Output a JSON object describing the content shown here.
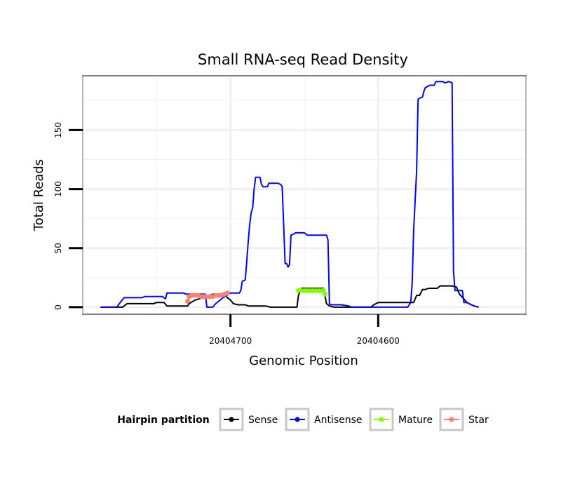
{
  "chart_data": {
    "type": "line",
    "title": "Small RNA-seq Read Density",
    "xlabel": "Genomic Position",
    "ylabel": "Total Reads",
    "x_reversed": true,
    "xlim": [
      20404800,
      20404500
    ],
    "ylim": [
      -6,
      196
    ],
    "x_ticks": [
      {
        "value": 20404700,
        "label": "20404700"
      },
      {
        "value": 20404600,
        "label": "20404600"
      }
    ],
    "y_ticks": [
      {
        "value": 0,
        "label": "0"
      },
      {
        "value": 50,
        "label": "50"
      },
      {
        "value": 100,
        "label": "100"
      },
      {
        "value": 150,
        "label": "150"
      }
    ],
    "legend": {
      "title": "Hairpin partition",
      "position": "bottom",
      "entries": [
        {
          "label": "Sense",
          "color": "#000000"
        },
        {
          "label": "Antisense",
          "color": "#0000ff"
        },
        {
          "label": "Mature",
          "color": "#7fff00"
        },
        {
          "label": "Star",
          "color": "#fa8072"
        }
      ]
    },
    "series": [
      {
        "name": "Sense",
        "color": "#000000",
        "points": [
          [
            20404788,
            0
          ],
          [
            20404785,
            0
          ],
          [
            20404773,
            0
          ],
          [
            20404772,
            1
          ],
          [
            20404770,
            3
          ],
          [
            20404758,
            3
          ],
          [
            20404752,
            3
          ],
          [
            20404750,
            4
          ],
          [
            20404745,
            4
          ],
          [
            20404743,
            1
          ],
          [
            20404729,
            1
          ],
          [
            20404728,
            3
          ],
          [
            20404724,
            6
          ],
          [
            20404716,
            9
          ],
          [
            20404712,
            11
          ],
          [
            20404708,
            11
          ],
          [
            20404704,
            10
          ],
          [
            20404700,
            6
          ],
          [
            20404698,
            3
          ],
          [
            20404695,
            2
          ],
          [
            20404690,
            2
          ],
          [
            20404688,
            1
          ],
          [
            20404676,
            1
          ],
          [
            20404673,
            0
          ],
          [
            20404670,
            0
          ],
          [
            20404660,
            0
          ],
          [
            20404655,
            0
          ],
          [
            20404654,
            10
          ],
          [
            20404652,
            16
          ],
          [
            20404645,
            16
          ],
          [
            20404637,
            16
          ],
          [
            20404635,
            3
          ],
          [
            20404633,
            1
          ],
          [
            20404630,
            0
          ],
          [
            20404605,
            0
          ],
          [
            20404603,
            2
          ],
          [
            20404600,
            4
          ],
          [
            20404590,
            4
          ],
          [
            20404580,
            4
          ],
          [
            20404576,
            4
          ],
          [
            20404574,
            10
          ],
          [
            20404572,
            10
          ],
          [
            20404570,
            15
          ],
          [
            20404568,
            15
          ],
          [
            20404566,
            16
          ],
          [
            20404560,
            16
          ],
          [
            20404558,
            18
          ],
          [
            20404550,
            18
          ],
          [
            20404547,
            17
          ],
          [
            20404545,
            11
          ],
          [
            20404542,
            7
          ],
          [
            20404540,
            4
          ],
          [
            20404537,
            2
          ],
          [
            20404535,
            1
          ],
          [
            20404532,
            0
          ]
        ]
      },
      {
        "name": "Antisense",
        "color": "#0000ff",
        "points": [
          [
            20404788,
            0
          ],
          [
            20404785,
            0
          ],
          [
            20404777,
            0
          ],
          [
            20404774,
            5
          ],
          [
            20404772,
            8
          ],
          [
            20404760,
            8
          ],
          [
            20404758,
            9
          ],
          [
            20404746,
            9
          ],
          [
            20404744,
            7
          ],
          [
            20404743,
            12
          ],
          [
            20404732,
            12
          ],
          [
            20404730,
            11
          ],
          [
            20404717,
            11
          ],
          [
            20404716,
            0
          ],
          [
            20404712,
            0
          ],
          [
            20404710,
            3
          ],
          [
            20404708,
            5
          ],
          [
            20404705,
            8
          ],
          [
            20404700,
            12
          ],
          [
            20404694,
            12
          ],
          [
            20404693,
            14
          ],
          [
            20404692,
            22
          ],
          [
            20404690,
            23
          ],
          [
            20404689,
            38
          ],
          [
            20404688,
            55
          ],
          [
            20404687,
            70
          ],
          [
            20404686,
            80
          ],
          [
            20404685,
            84
          ],
          [
            20404684,
            100
          ],
          [
            20404683,
            110
          ],
          [
            20404680,
            110
          ],
          [
            20404679,
            104
          ],
          [
            20404678,
            102
          ],
          [
            20404675,
            102
          ],
          [
            20404674,
            105
          ],
          [
            20404668,
            105
          ],
          [
            20404666,
            104
          ],
          [
            20404665,
            102
          ],
          [
            20404664,
            70
          ],
          [
            20404663,
            37
          ],
          [
            20404662,
            37
          ],
          [
            20404661,
            34
          ],
          [
            20404660,
            36
          ],
          [
            20404659,
            61
          ],
          [
            20404657,
            62
          ],
          [
            20404656,
            63
          ],
          [
            20404650,
            63
          ],
          [
            20404648,
            61
          ],
          [
            20404635,
            61
          ],
          [
            20404634,
            57
          ],
          [
            20404633,
            3
          ],
          [
            20404632,
            2
          ],
          [
            20404630,
            2
          ],
          [
            20404625,
            2
          ],
          [
            20404620,
            1
          ],
          [
            20404618,
            0
          ],
          [
            20404600,
            0
          ],
          [
            20404590,
            0
          ],
          [
            20404580,
            0
          ],
          [
            20404579,
            2
          ],
          [
            20404578,
            4
          ],
          [
            20404577,
            20
          ],
          [
            20404576,
            65
          ],
          [
            20404575,
            90
          ],
          [
            20404574,
            115
          ],
          [
            20404573,
            176
          ],
          [
            20404572,
            177
          ],
          [
            20404570,
            178
          ],
          [
            20404569,
            183
          ],
          [
            20404568,
            186
          ],
          [
            20404565,
            188
          ],
          [
            20404562,
            188
          ],
          [
            20404561,
            191
          ],
          [
            20404556,
            191
          ],
          [
            20404555,
            190
          ],
          [
            20404552,
            191
          ],
          [
            20404550,
            190
          ],
          [
            20404549,
            30
          ],
          [
            20404548,
            14
          ],
          [
            20404543,
            14
          ],
          [
            20404542,
            4
          ],
          [
            20404540,
            4
          ],
          [
            20404537,
            2
          ],
          [
            20404535,
            1
          ],
          [
            20404532,
            0
          ]
        ]
      },
      {
        "name": "Mature",
        "color": "#7fff00",
        "points": [
          [
            20404654,
            14
          ],
          [
            20404652,
            14
          ],
          [
            20404650,
            14
          ],
          [
            20404648,
            14
          ],
          [
            20404646,
            14
          ],
          [
            20404644,
            14
          ],
          [
            20404642,
            14
          ],
          [
            20404640,
            14
          ],
          [
            20404638,
            14
          ],
          [
            20404637,
            14
          ],
          [
            20404636,
            11
          ]
        ]
      },
      {
        "name": "Star",
        "color": "#fa8072",
        "points": [
          [
            20404729,
            5
          ],
          [
            20404728,
            9
          ],
          [
            20404726,
            10
          ],
          [
            20404724,
            10
          ],
          [
            20404722,
            10
          ],
          [
            20404720,
            9
          ],
          [
            20404718,
            9
          ],
          [
            20404716,
            9
          ],
          [
            20404714,
            9
          ],
          [
            20404712,
            9
          ],
          [
            20404710,
            10
          ],
          [
            20404708,
            10
          ],
          [
            20404706,
            10
          ],
          [
            20404704,
            11
          ],
          [
            20404702,
            12
          ]
        ]
      }
    ]
  }
}
